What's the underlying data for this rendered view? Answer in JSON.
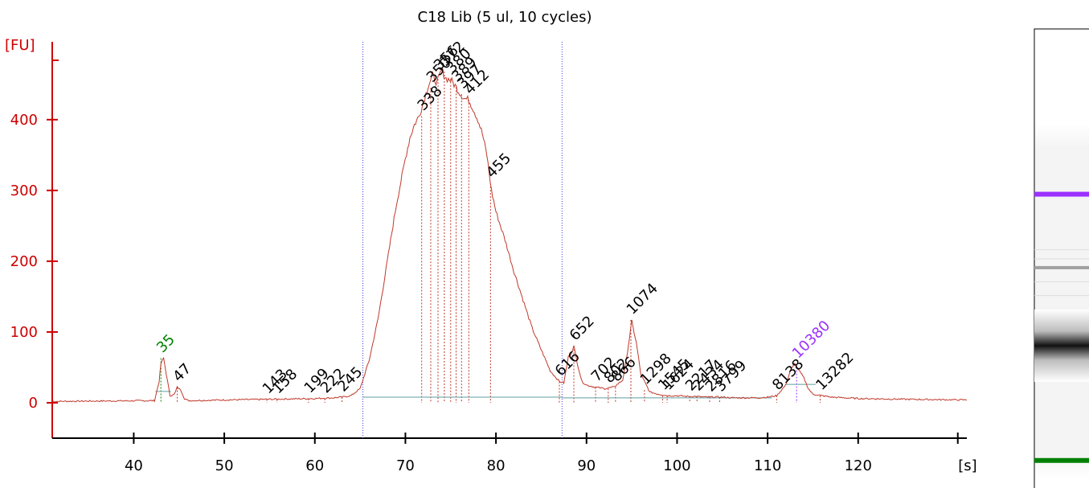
{
  "chart_data": {
    "type": "line",
    "title": "C18 Lib (5 ul, 10 cycles)",
    "ylabel": "[FU]",
    "xlabel": "[s]",
    "xlim": [
      31,
      132
    ],
    "ylim": [
      -50,
      510
    ],
    "x_ticks": [
      40,
      50,
      60,
      70,
      80,
      90,
      100,
      110,
      120
    ],
    "y_ticks": [
      0,
      100,
      200,
      300,
      400
    ],
    "region_bounds_s": [
      65.3,
      87.3
    ],
    "trace": {
      "x": [
        31,
        42.3,
        42.8,
        43.0,
        43.3,
        43.6,
        44.0,
        44.5,
        44.8,
        45.2,
        45.6,
        46,
        50,
        55,
        60,
        62,
        63,
        64,
        65,
        66,
        67,
        68,
        69,
        70,
        70.5,
        71,
        71.5,
        72,
        72.5,
        73,
        73.5,
        74,
        74.5,
        75,
        75.5,
        76,
        76.5,
        77,
        77.5,
        78,
        78.5,
        79,
        79.5,
        80,
        81,
        82,
        83,
        84,
        85,
        86,
        87,
        87.5,
        88,
        88.3,
        88.6,
        89,
        89.5,
        90,
        91,
        92,
        93,
        94,
        94.5,
        95,
        95.5,
        96,
        97,
        98,
        99,
        100,
        101,
        102,
        103,
        104,
        105,
        106,
        107,
        108,
        109,
        110,
        111,
        112,
        112.5,
        113,
        113.5,
        114,
        114.5,
        115,
        116,
        117,
        120,
        125,
        132
      ],
      "y": [
        2,
        3,
        30,
        55,
        63,
        40,
        10,
        12,
        22,
        18,
        6,
        3,
        4,
        5,
        6,
        7,
        8,
        10,
        20,
        60,
        120,
        200,
        280,
        345,
        375,
        393,
        405,
        425,
        448,
        462,
        452,
        470,
        458,
        456,
        448,
        438,
        430,
        428,
        415,
        400,
        380,
        350,
        300,
        270,
        230,
        185,
        145,
        105,
        75,
        45,
        30,
        28,
        65,
        70,
        80,
        55,
        30,
        25,
        22,
        20,
        22,
        32,
        70,
        115,
        85,
        40,
        15,
        12,
        10,
        10,
        9,
        9,
        8,
        8,
        8,
        7,
        7,
        7,
        7,
        8,
        10,
        25,
        45,
        55,
        45,
        35,
        20,
        12,
        10,
        8,
        6,
        5,
        4
      ]
    },
    "peaks": [
      {
        "label": "35",
        "x": 43.0,
        "y": 63,
        "color": "#008000",
        "marker": "lower"
      },
      {
        "label": "47",
        "x": 44.8,
        "y": 22,
        "color": "#000000"
      },
      {
        "label": "143",
        "x": 54.7,
        "y": 5,
        "color": "#000000"
      },
      {
        "label": "158",
        "x": 55.8,
        "y": 5,
        "color": "#000000"
      },
      {
        "label": "199",
        "x": 59.3,
        "y": 6,
        "color": "#000000"
      },
      {
        "label": "222",
        "x": 61.1,
        "y": 6,
        "color": "#000000"
      },
      {
        "label": "245",
        "x": 63.0,
        "y": 8,
        "color": "#000000"
      },
      {
        "label": "338",
        "x": 71.8,
        "y": 405,
        "color": "#000000"
      },
      {
        "label": "350",
        "x": 72.8,
        "y": 445,
        "color": "#000000"
      },
      {
        "label": "356",
        "x": 73.6,
        "y": 462,
        "color": "#000000"
      },
      {
        "label": "372",
        "x": 74.3,
        "y": 468,
        "color": "#000000"
      },
      {
        "label": "380",
        "x": 75.0,
        "y": 458,
        "color": "#000000"
      },
      {
        "label": "389",
        "x": 75.6,
        "y": 446,
        "color": "#000000"
      },
      {
        "label": "397",
        "x": 76.2,
        "y": 436,
        "color": "#000000"
      },
      {
        "label": "412",
        "x": 77.0,
        "y": 428,
        "color": "#000000"
      },
      {
        "label": "455",
        "x": 79.4,
        "y": 310,
        "color": "#000000"
      },
      {
        "label": "616",
        "x": 87.0,
        "y": 30,
        "color": "#000000"
      },
      {
        "label": "652",
        "x": 88.6,
        "y": 80,
        "color": "#000000"
      },
      {
        "label": "702",
        "x": 91.0,
        "y": 22,
        "color": "#000000"
      },
      {
        "label": "802",
        "x": 92.4,
        "y": 20,
        "color": "#000000"
      },
      {
        "label": "866",
        "x": 93.2,
        "y": 22,
        "color": "#000000"
      },
      {
        "label": "1074",
        "x": 94.9,
        "y": 117,
        "color": "#000000"
      },
      {
        "label": "1298",
        "x": 96.4,
        "y": 18,
        "color": "#000000"
      },
      {
        "label": "1545",
        "x": 98.4,
        "y": 10,
        "color": "#000000"
      },
      {
        "label": "1624",
        "x": 98.9,
        "y": 10,
        "color": "#000000"
      },
      {
        "label": "2217",
        "x": 101.4,
        "y": 9,
        "color": "#000000"
      },
      {
        "label": "2434",
        "x": 102.2,
        "y": 9,
        "color": "#000000"
      },
      {
        "label": "2816",
        "x": 103.6,
        "y": 8,
        "color": "#000000"
      },
      {
        "label": "3799",
        "x": 104.7,
        "y": 8,
        "color": "#000000"
      },
      {
        "label": "8138",
        "x": 111.0,
        "y": 10,
        "color": "#000000"
      },
      {
        "label": "10380",
        "x": 113.2,
        "y": 55,
        "color": "#9b30ff",
        "marker": "upper"
      },
      {
        "label": "13282",
        "x": 115.8,
        "y": 10,
        "color": "#000000"
      }
    ],
    "baselines": [
      {
        "x": [
          42.4,
          44.1
        ],
        "y": 16
      },
      {
        "x": [
          65.3,
          87.3
        ],
        "y": 8
      },
      {
        "x": [
          87.3,
          110.5
        ],
        "y": 7
      },
      {
        "x": [
          112.0,
          115.3
        ],
        "y": 26
      }
    ],
    "colors": {
      "axis": "#cc0000",
      "trace": "#c0392b",
      "region_line": "#3b3bd6",
      "baseline": "#5f9ea0",
      "lower_marker": "#008000",
      "upper_marker": "#9b30ff"
    }
  },
  "gel": {
    "bands": [
      {
        "pos": 0.36,
        "color": "#9b30ff",
        "thick": 6
      },
      {
        "pos": 0.52,
        "color": "#a0a0a0",
        "thick": 4
      },
      {
        "pos": 0.69,
        "color": "#111111",
        "thick": 40
      },
      {
        "pos": 0.94,
        "color": "#008000",
        "thick": 6
      }
    ]
  }
}
